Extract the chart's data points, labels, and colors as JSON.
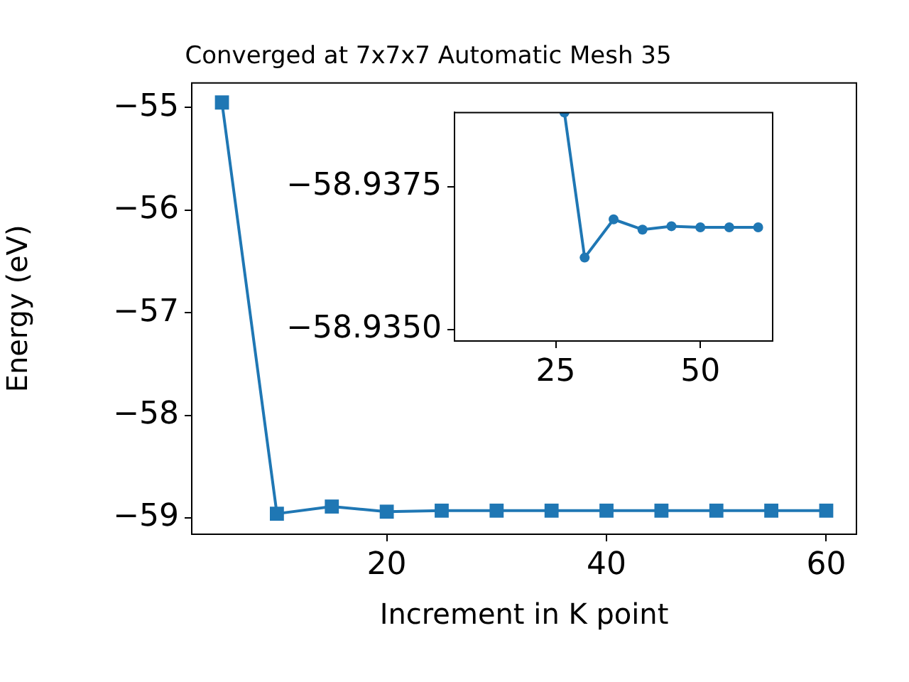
{
  "chart_data": [
    {
      "type": "line",
      "title": "Converged at 7x7x7 Automatic Mesh 35",
      "xlabel": "Increment in K point",
      "ylabel": "Energy (eV)",
      "marker": "square",
      "x": [
        5,
        10,
        15,
        20,
        25,
        30,
        35,
        40,
        45,
        50,
        55,
        60
      ],
      "series": [
        {
          "color": "#1f77b4",
          "values": [
            -54.95,
            -58.96,
            -58.89,
            -58.94,
            -58.93,
            -58.93,
            -58.93,
            -58.93,
            -58.93,
            -58.93,
            -58.93,
            -58.93
          ]
        }
      ],
      "xlim": [
        2.25,
        62.75
      ],
      "ylim": [
        -59.16,
        -54.76
      ],
      "xticks": [
        20,
        40,
        60
      ],
      "yticks": [
        {
          "value": -59,
          "label": "−59"
        },
        {
          "value": -58,
          "label": "−58"
        },
        {
          "value": -57,
          "label": "−57"
        },
        {
          "value": -56,
          "label": "−56"
        },
        {
          "value": -55,
          "label": "−55"
        }
      ]
    },
    {
      "type": "line",
      "marker": "circle",
      "x": [
        26.5,
        30,
        35,
        40,
        45,
        50,
        55,
        60
      ],
      "series": [
        {
          "color": "#1f77b4",
          "values": [
            -58.9388,
            -58.93626,
            -58.93693,
            -58.93675,
            -58.93681,
            -58.93679,
            -58.93679,
            -58.93679
          ]
        }
      ],
      "xlim": [
        7.5,
        62.5
      ],
      "ylim": [
        -58.9348,
        -58.9388
      ],
      "xticks": [
        25,
        50
      ],
      "yticks": [
        {
          "value": -58.9375,
          "label": "−58.9375"
        },
        {
          "value": -58.935,
          "label": "−58.9350"
        }
      ]
    }
  ]
}
